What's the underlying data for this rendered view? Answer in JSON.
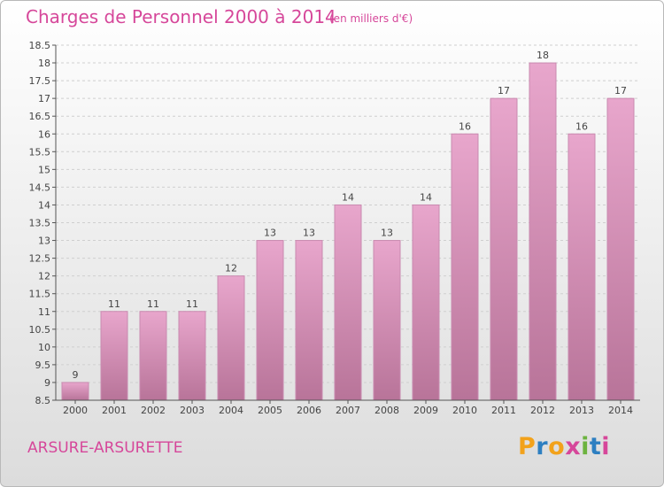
{
  "title": "Charges de Personnel 2000 à 2014",
  "subtitle": "(en milliers d'€)",
  "place": "ARSURE-ARSURETTE",
  "logo": {
    "letters": [
      "P",
      "r",
      "o",
      "x",
      "i",
      "t",
      "i"
    ],
    "colors": [
      "#f2a21b",
      "#2d7fc1",
      "#f2a21b",
      "#d6479a",
      "#6cb33f",
      "#2d7fc1",
      "#d6479a"
    ]
  },
  "colors": {
    "bar_top": "#e8a6cc",
    "bar_bottom": "#b87499",
    "bar_edge": "#c98ab0",
    "accent": "#d6479a"
  },
  "chart_data": {
    "type": "bar",
    "categories": [
      "2000",
      "2001",
      "2002",
      "2003",
      "2004",
      "2005",
      "2006",
      "2007",
      "2008",
      "2009",
      "2010",
      "2011",
      "2012",
      "2013",
      "2014"
    ],
    "values": [
      9,
      11,
      11,
      11,
      12,
      13,
      13,
      14,
      13,
      14,
      16,
      17,
      18,
      16,
      17
    ],
    "labels": [
      "9",
      "11",
      "11",
      "11",
      "12",
      "13",
      "13",
      "14",
      "13",
      "14",
      "16",
      "17",
      "18",
      "16",
      "17"
    ],
    "ylim": [
      8.5,
      18.5
    ],
    "yticks": [
      "8.5",
      "9",
      "9.5",
      "10",
      "10.5",
      "11",
      "11.5",
      "12",
      "12.5",
      "13",
      "13.5",
      "14",
      "14.5",
      "15",
      "15.5",
      "16",
      "16.5",
      "17",
      "17.5",
      "18",
      "18.5"
    ],
    "grid": true,
    "title": "Charges de Personnel 2000 à 2014",
    "xlabel": "",
    "ylabel": ""
  }
}
